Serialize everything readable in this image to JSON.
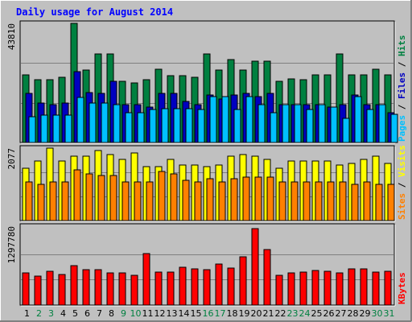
{
  "chart_data": {
    "title": "Daily usage for August 2014",
    "days": [
      "1",
      "2",
      "3",
      "4",
      "5",
      "6",
      "7",
      "8",
      "9",
      "10",
      "11",
      "12",
      "13",
      "14",
      "15",
      "16",
      "17",
      "18",
      "19",
      "20",
      "21",
      "22",
      "23",
      "24",
      "25",
      "26",
      "27",
      "28",
      "29",
      "30",
      "31"
    ],
    "weekend_days": [
      "2",
      "3",
      "9",
      "10",
      "16",
      "17",
      "23",
      "24",
      "30",
      "31"
    ],
    "panels": [
      {
        "type": "bar",
        "max_label": "43810",
        "ylim": [
          0,
          43810
        ],
        "series": [
          {
            "name": "Hits",
            "color": "#008040",
            "values": [
              25000,
              23000,
              23000,
              24000,
              43810,
              26500,
              32500,
              32500,
              22500,
              22000,
              23000,
              27000,
              24500,
              24500,
              24000,
              32500,
              26500,
              30500,
              26500,
              30000,
              30000,
              22500,
              23500,
              23000,
              25000,
              25000,
              32500,
              25000,
              25000,
              27000,
              25000
            ]
          },
          {
            "name": "Files",
            "color": "#0000c0",
            "values": [
              18000,
              14500,
              14000,
              14500,
              26000,
              18500,
              18000,
              22500,
              14000,
              14000,
              13000,
              18000,
              18000,
              15000,
              14000,
              17500,
              16000,
              17500,
              18000,
              17000,
              18000,
              14000,
              14000,
              14000,
              14000,
              13000,
              14000,
              17500,
              14000,
              14000,
              11000
            ]
          },
          {
            "name": "Pages",
            "color": "#00c0ff",
            "values": [
              9500,
              10000,
              10000,
              10000,
              16500,
              14500,
              14500,
              14000,
              11000,
              11000,
              12000,
              12500,
              12500,
              12500,
              12000,
              17000,
              17000,
              12000,
              17000,
              14000,
              11000,
              14000,
              14000,
              12000,
              14000,
              13000,
              9000,
              17000,
              12000,
              14000,
              10500
            ]
          }
        ],
        "axis_label_parts": [
          "Pages",
          "/",
          "Files",
          "/",
          "Hits"
        ]
      },
      {
        "type": "bar",
        "max_label": "2077",
        "ylim": [
          0,
          2077
        ],
        "series": [
          {
            "name": "Visits",
            "color": "#ffff00",
            "values": [
              1500,
              1700,
              2077,
              1700,
              1850,
              1850,
              2000,
              1900,
              1750,
              1950,
              1550,
              1550,
              1750,
              1600,
              1600,
              1550,
              1600,
              1850,
              1900,
              1850,
              1750,
              1500,
              1700,
              1700,
              1700,
              1700,
              1600,
              1650,
              1750,
              1850,
              1650
            ]
          },
          {
            "name": "Sites",
            "color": "#ff8000",
            "values": [
              1100,
              1050,
              1100,
              1100,
              1450,
              1350,
              1300,
              1300,
              1100,
              1100,
              1100,
              1400,
              1350,
              1150,
              1100,
              1200,
              1100,
              1200,
              1250,
              1250,
              1250,
              1100,
              1100,
              1100,
              1100,
              1100,
              1100,
              1050,
              1100,
              1050,
              1050
            ]
          }
        ],
        "axis_label_parts": [
          "Sites",
          "/",
          "Visits"
        ]
      },
      {
        "type": "bar",
        "max_label": "1297780",
        "ylim": [
          0,
          1297780
        ],
        "series": [
          {
            "name": "KBytes",
            "color": "#ff0000",
            "values": [
              540000,
              495000,
              575000,
              520000,
              665000,
              607000,
              607000,
              550000,
              540000,
              505000,
              880000,
              560000,
              555000,
              640000,
              620000,
              600000,
              703000,
              630000,
              825000,
              1297780,
              940000,
              500000,
              543000,
              557000,
              594000,
              568000,
              548000,
              618000,
              610000,
              560000,
              573000
            ]
          }
        ],
        "axis_label_parts": [
          "KBytes"
        ]
      }
    ]
  },
  "colors": {
    "background": "#c0c0c0",
    "frame_light": "#ffffff",
    "frame_dark": "#808080",
    "title": "#0000ff",
    "day_weekday": "#000000",
    "day_weekend": "#008040",
    "axis_label_separator": "#000000",
    "gridline": "#808080"
  }
}
